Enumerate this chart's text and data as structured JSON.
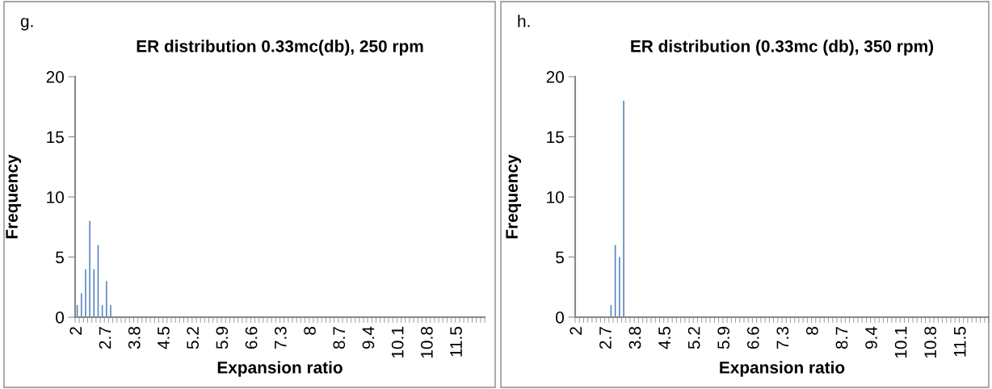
{
  "chart_data": [
    {
      "type": "bar",
      "title": "ER distribution 0.33mc(db), 250 rpm",
      "xlabel": "Expansion ratio",
      "ylabel": "Frequency",
      "annotations": [
        "g."
      ],
      "categories": [
        "2",
        null,
        null,
        null,
        null,
        null,
        null,
        "2.7",
        null,
        null,
        null,
        null,
        null,
        null,
        "3.8",
        null,
        null,
        null,
        null,
        null,
        null,
        "4.5",
        null,
        null,
        null,
        null,
        null,
        null,
        "5.2",
        null,
        null,
        null,
        null,
        null,
        null,
        "5.9",
        null,
        null,
        null,
        null,
        null,
        null,
        "6.6",
        null,
        null,
        null,
        null,
        null,
        null,
        "7.3",
        null,
        null,
        null,
        null,
        null,
        null,
        "8",
        null,
        null,
        null,
        null,
        null,
        null,
        "8.7",
        null,
        null,
        null,
        null,
        null,
        null,
        "9.4",
        null,
        null,
        null,
        null,
        null,
        null,
        "10.1",
        null,
        null,
        null,
        null,
        null,
        null,
        "10.8",
        null,
        null,
        null,
        null,
        null,
        null,
        "11.5",
        null,
        null,
        null,
        null,
        null,
        null
      ],
      "values": [
        1,
        2,
        4,
        8,
        4,
        6,
        1,
        3,
        1,
        0,
        0,
        0,
        0,
        0,
        0,
        0,
        0,
        0,
        0,
        0,
        0,
        0,
        0,
        0,
        0,
        0,
        0,
        0,
        0,
        0,
        0,
        0,
        0,
        0,
        0,
        0,
        0,
        0,
        0,
        0,
        0,
        0,
        0,
        0,
        0,
        0,
        0,
        0,
        0,
        0,
        0,
        0,
        0,
        0,
        0,
        0,
        0,
        0,
        0,
        0,
        0,
        0,
        0,
        0,
        0,
        0,
        0,
        0,
        0,
        0,
        0,
        0,
        0,
        0,
        0,
        0,
        0,
        0,
        0,
        0,
        0,
        0,
        0,
        0,
        0,
        0,
        0,
        0,
        0,
        0,
        0,
        0,
        0,
        0,
        0,
        0,
        0,
        0
      ],
      "color": "#4f81bd",
      "ylim": [
        0,
        20
      ],
      "yticks": [
        0,
        5,
        10,
        15,
        20
      ],
      "grid": false,
      "legend": false
    },
    {
      "type": "bar",
      "title": "ER distribution (0.33mc (db), 350 rpm)",
      "xlabel": "Expansion ratio",
      "ylabel": "Frequency",
      "annotations": [
        "h."
      ],
      "categories": [
        "2",
        null,
        null,
        null,
        null,
        null,
        null,
        "2.7",
        null,
        null,
        null,
        null,
        null,
        null,
        "3.8",
        null,
        null,
        null,
        null,
        null,
        null,
        "4.5",
        null,
        null,
        null,
        null,
        null,
        null,
        "5.2",
        null,
        null,
        null,
        null,
        null,
        null,
        "5.9",
        null,
        null,
        null,
        null,
        null,
        null,
        "6.6",
        null,
        null,
        null,
        null,
        null,
        null,
        "7.3",
        null,
        null,
        null,
        null,
        null,
        null,
        "8",
        null,
        null,
        null,
        null,
        null,
        null,
        "8.7",
        null,
        null,
        null,
        null,
        null,
        null,
        "9.4",
        null,
        null,
        null,
        null,
        null,
        null,
        "10.1",
        null,
        null,
        null,
        null,
        null,
        null,
        "10.8",
        null,
        null,
        null,
        null,
        null,
        null,
        "11.5",
        null,
        null,
        null,
        null,
        null,
        null
      ],
      "values": [
        0,
        0,
        0,
        0,
        0,
        0,
        0,
        0,
        1,
        6,
        5,
        18,
        0,
        0,
        0,
        0,
        0,
        0,
        0,
        0,
        0,
        0,
        0,
        0,
        0,
        0,
        0,
        0,
        0,
        0,
        0,
        0,
        0,
        0,
        0,
        0,
        0,
        0,
        0,
        0,
        0,
        0,
        0,
        0,
        0,
        0,
        0,
        0,
        0,
        0,
        0,
        0,
        0,
        0,
        0,
        0,
        0,
        0,
        0,
        0,
        0,
        0,
        0,
        0,
        0,
        0,
        0,
        0,
        0,
        0,
        0,
        0,
        0,
        0,
        0,
        0,
        0,
        0,
        0,
        0,
        0,
        0,
        0,
        0,
        0,
        0,
        0,
        0,
        0,
        0,
        0,
        0,
        0,
        0,
        0,
        0,
        0,
        0
      ],
      "color": "#4f81bd",
      "ylim": [
        0,
        20
      ],
      "yticks": [
        0,
        5,
        10,
        15,
        20
      ],
      "grid": false,
      "legend": false
    }
  ]
}
